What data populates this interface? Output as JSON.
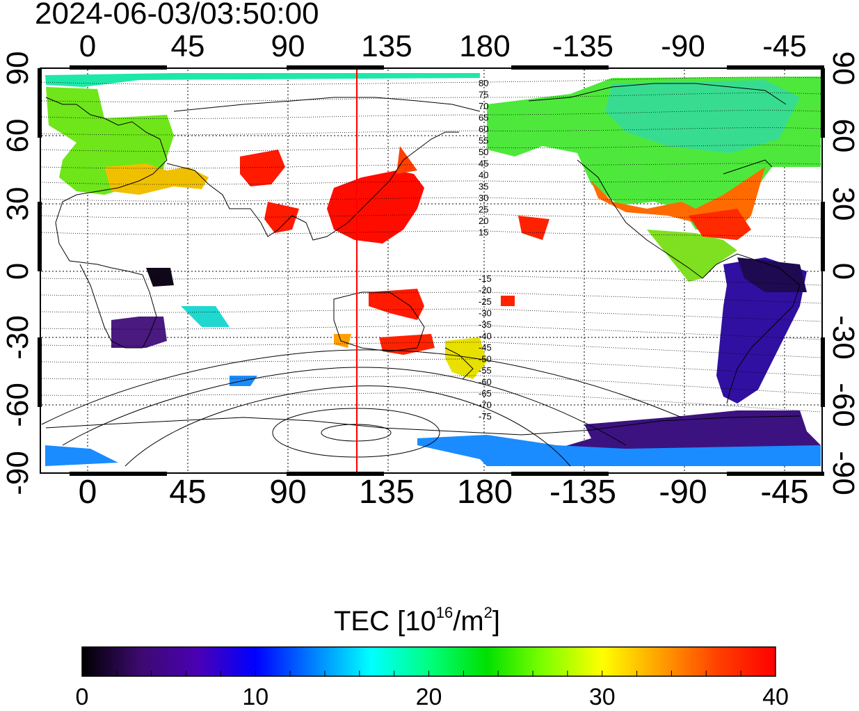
{
  "title": "2024-06-03/03:50:00",
  "map": {
    "top_ticks": [
      "0",
      "45",
      "90",
      "135",
      "180",
      "-135",
      "-90",
      "-45"
    ],
    "bottom_ticks": [
      "0",
      "45",
      "90",
      "135",
      "180",
      "-135",
      "-90",
      "-45"
    ],
    "left_ticks": [
      "90",
      "60",
      "30",
      "0",
      "-30",
      "-60",
      "-90"
    ],
    "right_ticks": [
      "90",
      "60",
      "30",
      "0",
      "-30",
      "-60",
      "-90"
    ],
    "contour_labels_north": [
      "80",
      "75",
      "70",
      "65",
      "60",
      "55",
      "50",
      "45",
      "40",
      "35",
      "30",
      "25",
      "20",
      "15"
    ],
    "contour_labels_south": [
      "-15",
      "-20",
      "-25",
      "-30",
      "-35",
      "-40",
      "-45",
      "-50",
      "-55",
      "-60",
      "-65",
      "-70",
      "-75"
    ],
    "marker_longitude": 123,
    "marker_color": "#ff0000"
  },
  "colorbar": {
    "title_prefix": "TEC  [10",
    "title_sup1": "16",
    "title_mid": "/m",
    "title_sup2": "2",
    "title_suffix": "]",
    "ticks": [
      "0",
      "10",
      "20",
      "30",
      "40"
    ],
    "min": 0,
    "max": 40,
    "colors": [
      "#000000",
      "#3c0a6e",
      "#4b00b4",
      "#0000ff",
      "#0080ff",
      "#00ffff",
      "#00ff80",
      "#00e000",
      "#80ff00",
      "#ffff00",
      "#ffa000",
      "#ff4000",
      "#ff0000"
    ]
  },
  "tec_regions": [
    {
      "name": "arctic-europe",
      "color": "#1ee8a8"
    },
    {
      "name": "europe",
      "color": "#6ee61a"
    },
    {
      "name": "mediterranean",
      "color": "#f0c000"
    },
    {
      "name": "east-asia",
      "color": "#ff0c00"
    },
    {
      "name": "north-america",
      "color": "#4ee83c"
    },
    {
      "name": "us-southeast",
      "color": "#ff4400"
    },
    {
      "name": "south-america",
      "color": "#3010a0"
    },
    {
      "name": "antarctica",
      "color": "#3c1280"
    },
    {
      "name": "southern-africa",
      "color": "#4a1a80"
    }
  ]
}
